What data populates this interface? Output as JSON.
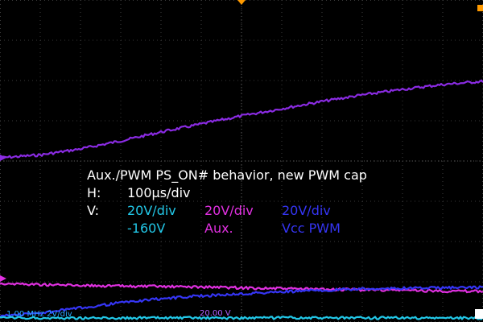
{
  "chart_data": {
    "type": "line",
    "title": "Aux./PWM PS_ON# behavior, new PWM cap",
    "horizontal_label": "H:",
    "horizontal_scale": "100µs/div",
    "vertical_label": "V:",
    "channels": [
      {
        "name": "-160V",
        "scale": "20V/div",
        "color": "#22c8e8"
      },
      {
        "name": "Aux.",
        "scale": "20V/div",
        "color": "#e030e0"
      },
      {
        "name": "Vcc PWM",
        "scale": "20V/div",
        "color": "#3535f5"
      },
      {
        "name": "purple trace",
        "color": "#8a2be2"
      }
    ],
    "x_divisions": 12,
    "y_divisions": 8,
    "xlim": [
      0,
      12
    ],
    "ylim": [
      -4,
      4
    ],
    "grid": true,
    "series": [
      {
        "channel": 3,
        "x": [
          0,
          1,
          2,
          3,
          4,
          5,
          6,
          7,
          8,
          9,
          10,
          11,
          12
        ],
        "y": [
          0.08,
          0.15,
          0.3,
          0.5,
          0.72,
          0.92,
          1.12,
          1.3,
          1.48,
          1.64,
          1.78,
          1.9,
          1.98
        ]
      },
      {
        "channel": 1,
        "x": [
          0,
          1,
          2,
          3,
          4,
          5,
          6,
          7,
          8,
          9,
          10,
          11,
          12
        ],
        "y": [
          -3.04,
          -3.07,
          -3.09,
          -3.11,
          -3.12,
          -3.13,
          -3.15,
          -3.17,
          -3.19,
          -3.2,
          -3.21,
          -3.23,
          -3.24
        ]
      },
      {
        "channel": 2,
        "x": [
          0,
          1,
          2,
          3,
          4,
          5,
          6,
          7,
          8,
          9,
          10,
          11,
          12
        ],
        "y": [
          -3.85,
          -3.78,
          -3.65,
          -3.52,
          -3.42,
          -3.35,
          -3.3,
          -3.25,
          -3.21,
          -3.18,
          -3.16,
          -3.15,
          -3.14
        ]
      },
      {
        "channel": 0,
        "x": [
          0,
          1,
          2,
          3,
          4,
          5,
          6,
          7,
          8,
          9,
          10,
          11,
          12
        ],
        "y": [
          -3.9,
          -3.9,
          -3.9,
          -3.9,
          -3.9,
          -3.9,
          -3.9,
          -3.9,
          -3.9,
          -3.9,
          -3.9,
          -3.9,
          -3.9
        ]
      }
    ],
    "trigger_level_readout": "20.00 V",
    "bottom_left_readout": "1.00 MHz 2V/div"
  }
}
